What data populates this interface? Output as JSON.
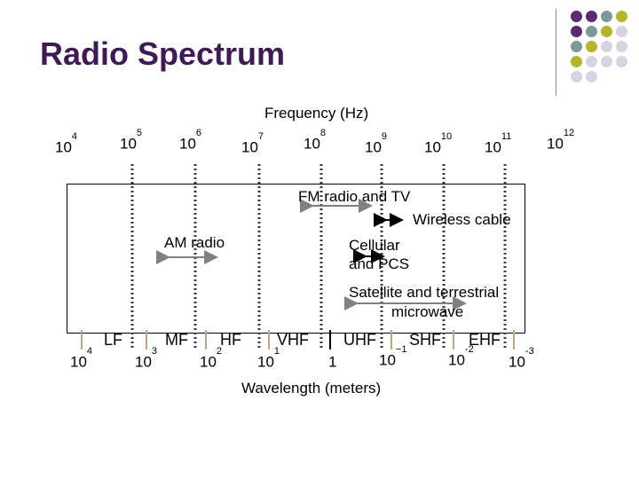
{
  "title": "Radio Spectrum",
  "frequency_label": "Frequency (Hz)",
  "frequency_ticks": [
    {
      "base": "10",
      "exp": "4"
    },
    {
      "base": "10",
      "exp": "5"
    },
    {
      "base": "10",
      "exp": "6"
    },
    {
      "base": "10",
      "exp": "7"
    },
    {
      "base": "10",
      "exp": "8"
    },
    {
      "base": "10",
      "exp": "9"
    },
    {
      "base": "10",
      "exp": "10"
    },
    {
      "base": "10",
      "exp": "11"
    },
    {
      "base": "10",
      "exp": "12"
    }
  ],
  "services": {
    "fm_tv": "FM radio and TV",
    "wireless_cable": "Wireless cable",
    "am_radio": "AM radio",
    "cellular_1": "Cellular",
    "cellular_2": "and PCS",
    "satellite_1": "Satellite and terrestrial",
    "satellite_2": "microwave"
  },
  "bands": [
    "LF",
    "MF",
    "HF",
    "VHF",
    "UHF",
    "SHF",
    "EHF"
  ],
  "wavelength_ticks": [
    {
      "base": "10",
      "exp": "4"
    },
    {
      "base": "10",
      "exp": "3"
    },
    {
      "base": "10",
      "exp": "2"
    },
    {
      "base": "10",
      "exp": "1"
    },
    {
      "base": "1",
      "exp": ""
    },
    {
      "base": "10",
      "exp": "−1"
    },
    {
      "base": "10",
      "exp": "-2"
    },
    {
      "base": "10",
      "exp": "-3"
    }
  ],
  "wavelength_label": "Wavelength (meters)",
  "colors": {
    "title": "#3f1a57",
    "purple": "#5a2a73",
    "teal": "#7a9a98",
    "olive": "#b5b52a",
    "lavender": "#d6d4e3",
    "arrow": "#808080"
  }
}
